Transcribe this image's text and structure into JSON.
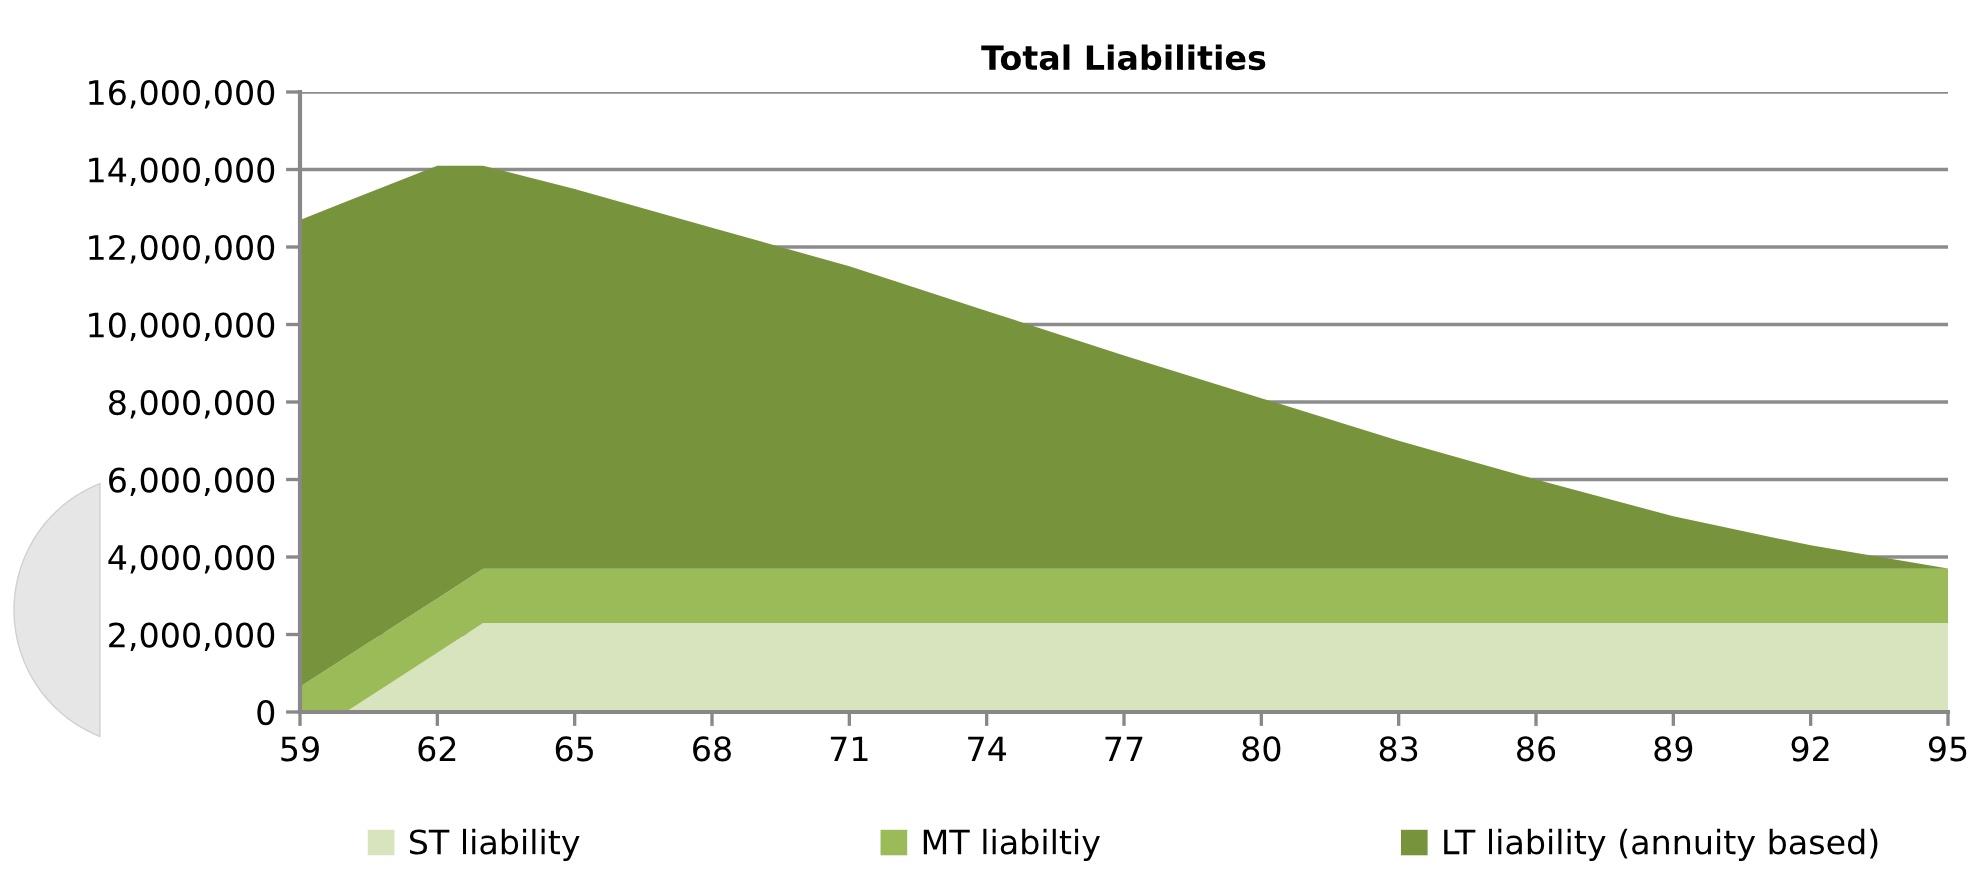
{
  "chart_data": {
    "type": "area",
    "stacked": true,
    "title": "Total Liabilities",
    "x": [
      59,
      60,
      62,
      63,
      65,
      68,
      71,
      74,
      77,
      80,
      83,
      86,
      89,
      92,
      95
    ],
    "series": [
      {
        "name": "ST liability",
        "color": "#d7e4bd",
        "values": [
          0,
          0,
          1530000,
          2300000,
          2300000,
          2300000,
          2300000,
          2300000,
          2300000,
          2300000,
          2300000,
          2300000,
          2300000,
          2300000,
          2300000
        ]
      },
      {
        "name": "MT liabiltiy",
        "color": "#9bbb59",
        "values": [
          650000,
          1410000,
          1400000,
          1400000,
          1400000,
          1400000,
          1400000,
          1400000,
          1400000,
          1400000,
          1400000,
          1400000,
          1400000,
          1400000,
          1400000
        ]
      },
      {
        "name": "LT liability (annuity based)",
        "color": "#77933c",
        "values": [
          12050000,
          11760000,
          11170000,
          10400000,
          9800000,
          8800000,
          7800000,
          6650000,
          5500000,
          4400000,
          3300000,
          2300000,
          1350000,
          600000,
          0
        ]
      }
    ],
    "xlim": [
      59,
      95
    ],
    "xticks": [
      59,
      62,
      65,
      68,
      71,
      74,
      77,
      80,
      83,
      86,
      89,
      92,
      95
    ],
    "ylim": [
      0,
      16000000
    ],
    "yticks": [
      0,
      {
        "value": 2000000,
        "label": "2,000,000"
      },
      {
        "value": 4000000,
        "label": "4,000,000"
      },
      {
        "value": 6000000,
        "label": "6,000,000"
      },
      {
        "value": 8000000,
        "label": "8,000,000"
      },
      {
        "value": 10000000,
        "label": "10,000,000"
      },
      {
        "value": 12000000,
        "label": "12,000,000"
      },
      {
        "value": 14000000,
        "label": "14,000,000"
      },
      {
        "value": 16000000,
        "label": "16,000,000"
      }
    ],
    "grid": "y",
    "legend": "bottom"
  }
}
